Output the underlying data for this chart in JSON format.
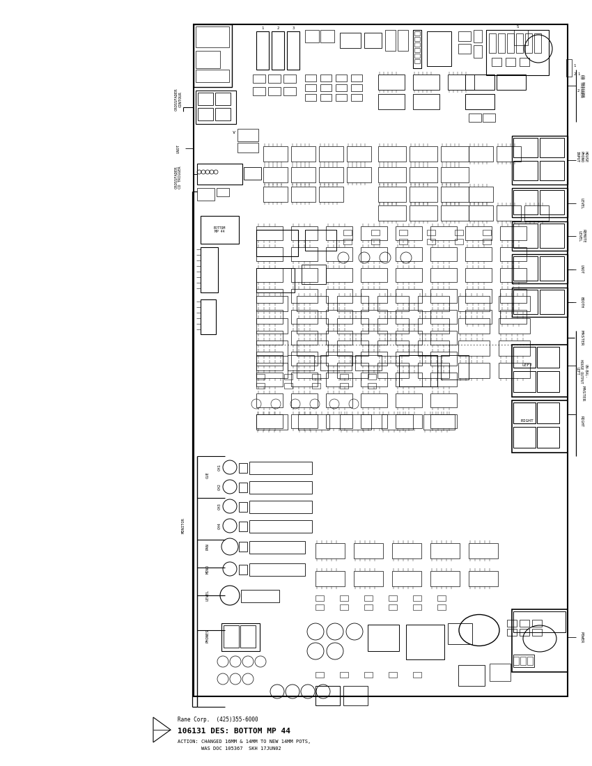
{
  "bg_color": "#ffffff",
  "fig_w": 8.5,
  "fig_h": 11.0,
  "dpi": 100,
  "title_block": {
    "company": "Rane Corp.  (425)355-6000",
    "doc_num": "106131 DES: BOTTOM MP 44",
    "action": "ACTION: CHANGED 16MM & 14MM TO NEW 14MM POTS,",
    "action2": "        WAS DOC 105367  SKH 17JUN02"
  }
}
